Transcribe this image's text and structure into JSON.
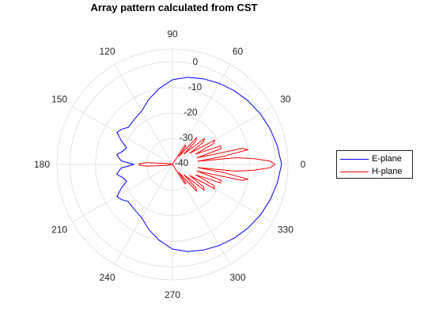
{
  "chart_data": {
    "type": "polar-line",
    "title": "Array pattern calculated from CST",
    "angle_ticks_deg": [
      0,
      30,
      60,
      90,
      120,
      150,
      180,
      210,
      240,
      270,
      300,
      330
    ],
    "angle_tick_labels": [
      "0",
      "30",
      "60",
      "90",
      "120",
      "150",
      "180",
      "210",
      "240",
      "270",
      "300",
      "330"
    ],
    "r_ticks_db": [
      0,
      -10,
      -20,
      -30,
      -40
    ],
    "r_tick_labels": [
      "0",
      "-10",
      "-20",
      "-30",
      "-40"
    ],
    "rlim_db": [
      -40,
      5
    ],
    "grid": true,
    "legend_placement": "right",
    "series": [
      {
        "name": "E-plane",
        "color": "#0000ff",
        "points": [
          [
            0,
            2.5
          ],
          [
            10,
            1.5
          ],
          [
            20,
            0.5
          ],
          [
            30,
            -0.5
          ],
          [
            40,
            -1.5
          ],
          [
            50,
            -2.5
          ],
          [
            60,
            -3.5
          ],
          [
            70,
            -4.5
          ],
          [
            80,
            -5.5
          ],
          [
            90,
            -7
          ],
          [
            100,
            -10
          ],
          [
            110,
            -13
          ],
          [
            120,
            -16
          ],
          [
            130,
            -17
          ],
          [
            140,
            -17.5
          ],
          [
            145,
            -16
          ],
          [
            150,
            -15
          ],
          [
            155,
            -18
          ],
          [
            160,
            -21
          ],
          [
            165,
            -20
          ],
          [
            170,
            -18
          ],
          [
            173,
            -19
          ],
          [
            176,
            -20
          ],
          [
            180,
            -25
          ],
          [
            184,
            -20
          ],
          [
            187,
            -19
          ],
          [
            190,
            -18
          ],
          [
            195,
            -20
          ],
          [
            200,
            -21
          ],
          [
            205,
            -18
          ],
          [
            210,
            -15
          ],
          [
            215,
            -16
          ],
          [
            220,
            -17.5
          ],
          [
            230,
            -17
          ],
          [
            240,
            -16
          ],
          [
            250,
            -13
          ],
          [
            260,
            -10
          ],
          [
            270,
            -7
          ],
          [
            280,
            -5.5
          ],
          [
            290,
            -4.5
          ],
          [
            300,
            -3.5
          ],
          [
            310,
            -2.5
          ],
          [
            320,
            -1.5
          ],
          [
            330,
            -0.5
          ],
          [
            340,
            0.5
          ],
          [
            350,
            1.5
          ],
          [
            360,
            2.5
          ]
        ]
      },
      {
        "name": "H-plane",
        "color": "#ff0000",
        "points": [
          [
            0,
            0
          ],
          [
            2,
            -2
          ],
          [
            4,
            -8
          ],
          [
            6,
            -15
          ],
          [
            7,
            -30
          ],
          [
            9,
            -20
          ],
          [
            11,
            -10
          ],
          [
            13,
            -12
          ],
          [
            15,
            -30
          ],
          [
            18,
            -20
          ],
          [
            21,
            -20
          ],
          [
            24,
            -30
          ],
          [
            27,
            -22
          ],
          [
            30,
            -21
          ],
          [
            33,
            -32
          ],
          [
            36,
            -25
          ],
          [
            39,
            -24
          ],
          [
            42,
            -34
          ],
          [
            45,
            -27
          ],
          [
            48,
            -26
          ],
          [
            51,
            -36
          ],
          [
            54,
            -31
          ],
          [
            57,
            -31
          ],
          [
            60,
            -40
          ],
          [
            80,
            -40
          ],
          [
            110,
            -40
          ],
          [
            150,
            -40
          ],
          [
            170,
            -38
          ],
          [
            176,
            -30
          ],
          [
            179,
            -27
          ],
          [
            181,
            -27
          ],
          [
            184,
            -30
          ],
          [
            190,
            -38
          ],
          [
            210,
            -40
          ],
          [
            250,
            -40
          ],
          [
            280,
            -40
          ],
          [
            300,
            -40
          ],
          [
            303,
            -31
          ],
          [
            306,
            -31
          ],
          [
            309,
            -36
          ],
          [
            312,
            -26
          ],
          [
            315,
            -27
          ],
          [
            318,
            -34
          ],
          [
            321,
            -24
          ],
          [
            324,
            -25
          ],
          [
            327,
            -32
          ],
          [
            330,
            -21
          ],
          [
            333,
            -22
          ],
          [
            336,
            -30
          ],
          [
            339,
            -20
          ],
          [
            342,
            -20
          ],
          [
            345,
            -30
          ],
          [
            347,
            -12
          ],
          [
            349,
            -10
          ],
          [
            351,
            -20
          ],
          [
            353,
            -30
          ],
          [
            354,
            -15
          ],
          [
            356,
            -8
          ],
          [
            358,
            -2
          ],
          [
            360,
            0
          ]
        ]
      }
    ]
  }
}
